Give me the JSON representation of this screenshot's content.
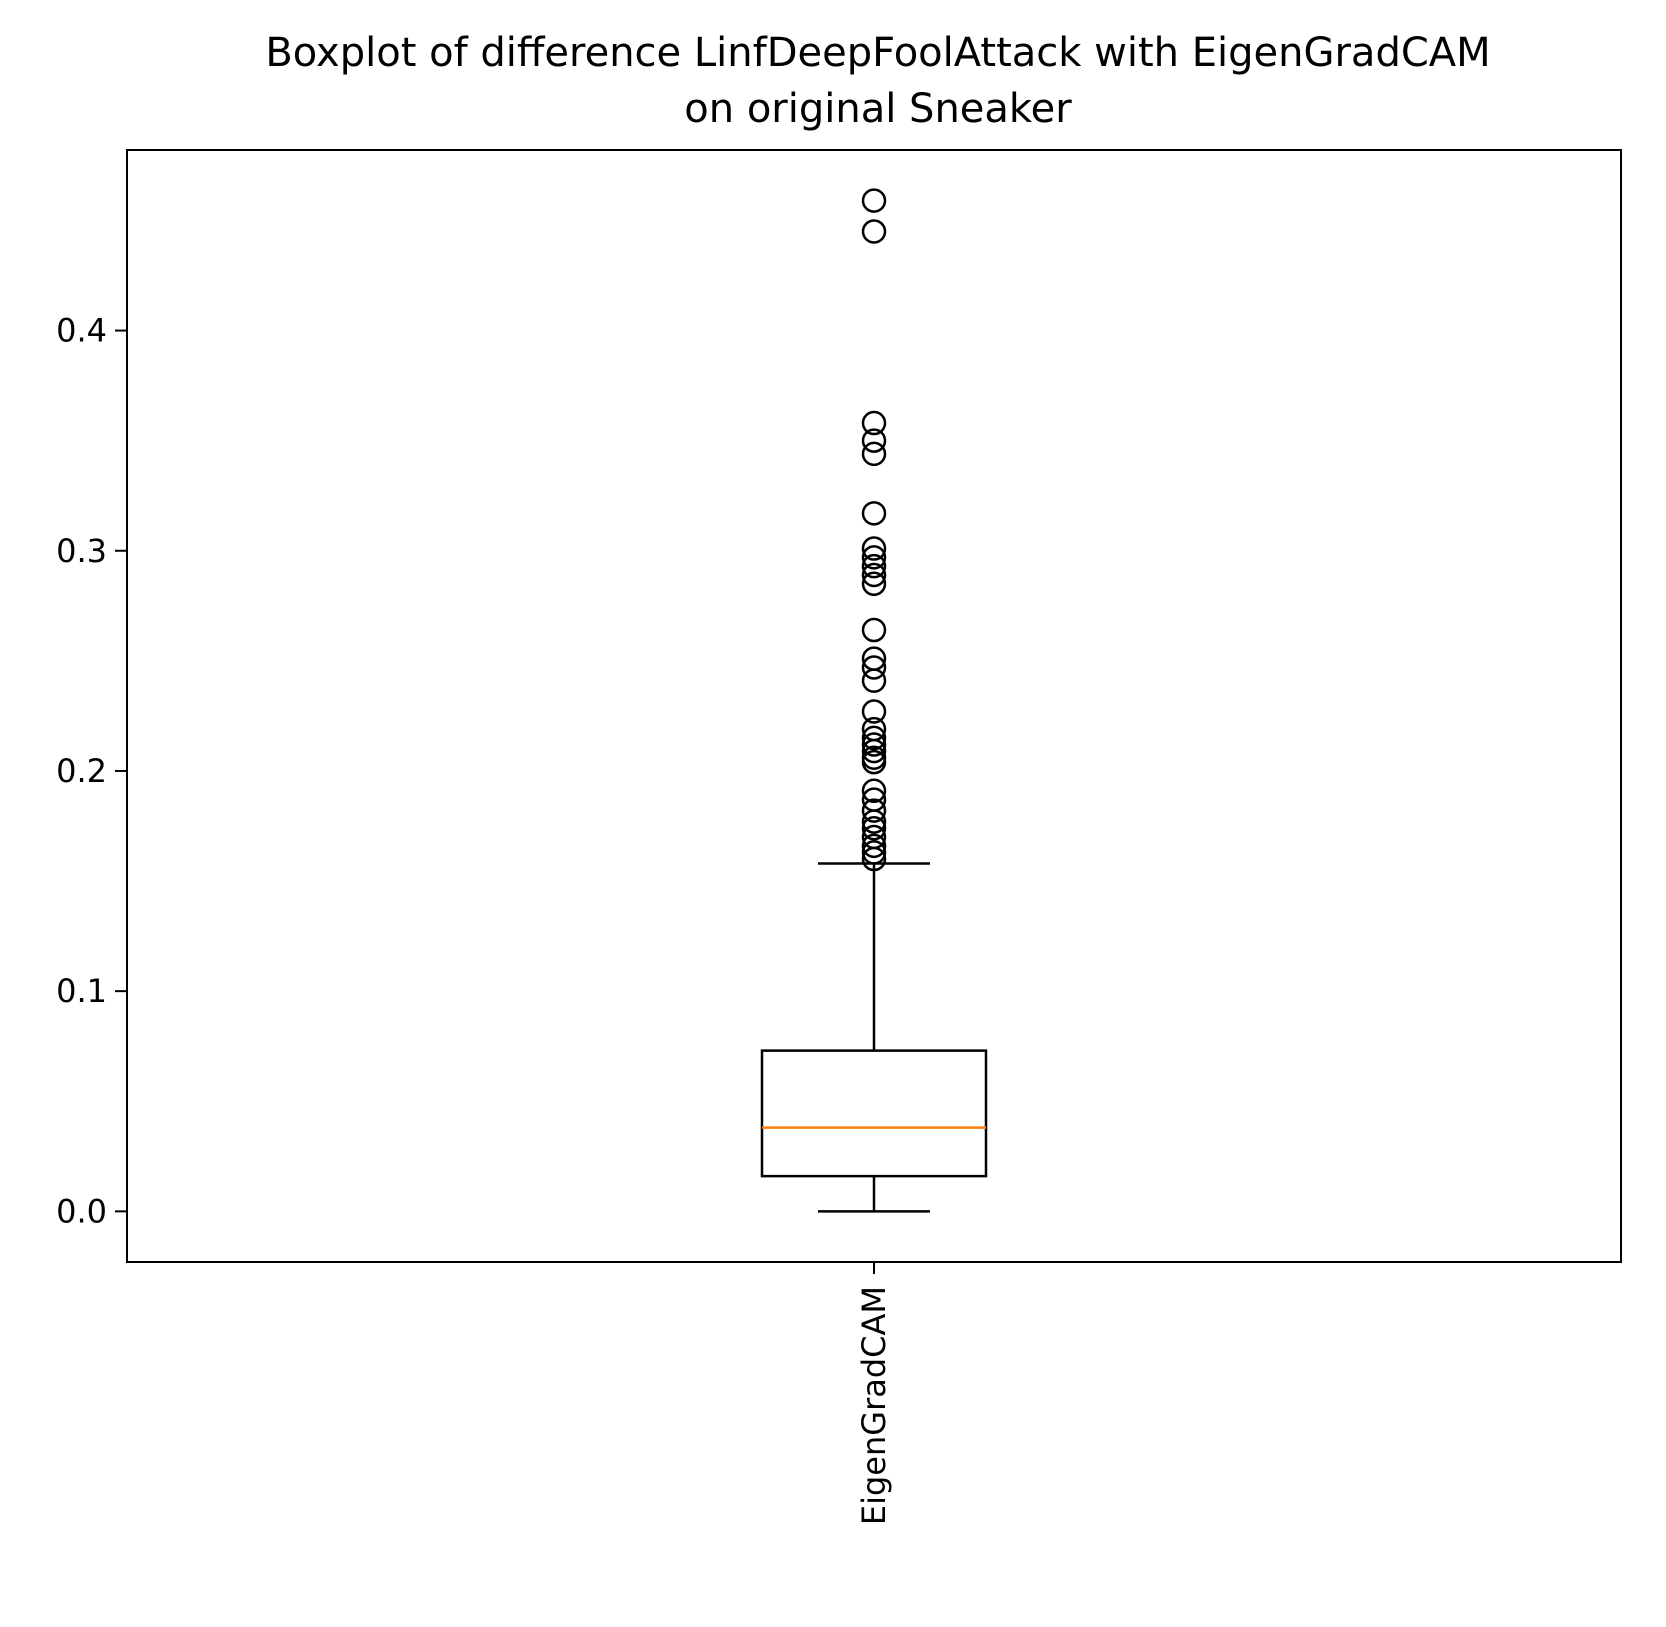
{
  "chart_data": {
    "type": "boxplot",
    "title": [
      "Boxplot of difference LinfDeepFoolAttack with EigenGradCAM",
      "on original Sneaker"
    ],
    "xlabel": "",
    "ylabel": "",
    "categories": [
      "EigenGradCAM"
    ],
    "ylim": [
      -0.023,
      0.482
    ],
    "yticks": [
      0.0,
      0.1,
      0.2,
      0.3,
      0.4
    ],
    "ytick_labels": [
      "0.0",
      "0.1",
      "0.2",
      "0.3",
      "0.4"
    ],
    "grid": false,
    "boxes": [
      {
        "category": "EigenGradCAM",
        "whisker_low": 0.0,
        "q1": 0.016,
        "median": 0.038,
        "q3": 0.073,
        "whisker_high": 0.158,
        "outliers": [
          0.459,
          0.445,
          0.358,
          0.35,
          0.344,
          0.317,
          0.301,
          0.297,
          0.293,
          0.289,
          0.285,
          0.264,
          0.251,
          0.247,
          0.241,
          0.227,
          0.219,
          0.215,
          0.212,
          0.209,
          0.206,
          0.204,
          0.191,
          0.187,
          0.182,
          0.177,
          0.174,
          0.17,
          0.166,
          0.163,
          0.16
        ]
      }
    ],
    "colors": {
      "box": "#000000",
      "median": "#ff7f0e",
      "outlier": "#000000"
    }
  }
}
